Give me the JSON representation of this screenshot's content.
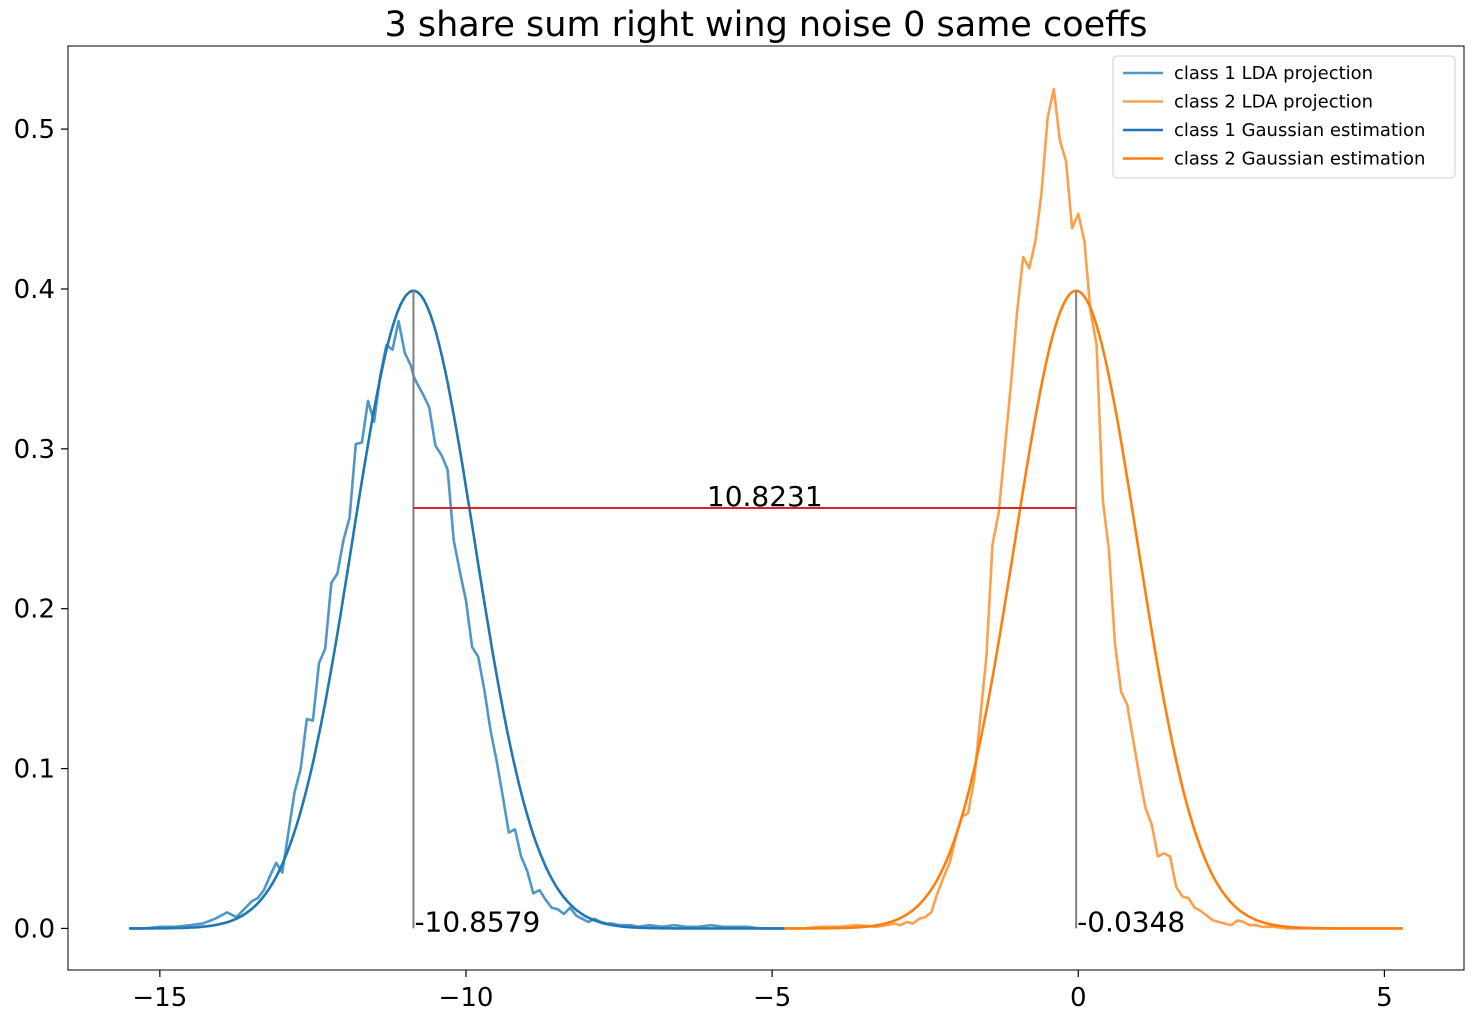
{
  "chart_data": {
    "type": "line",
    "title": "3 share sum right wing noise 0 same coeffs",
    "xlabel": "",
    "ylabel": "",
    "xlim": [
      -16.5,
      6.3
    ],
    "ylim": [
      -0.026,
      0.552
    ],
    "x_ticks": [
      {
        "value": -15,
        "label": "−15"
      },
      {
        "value": -10,
        "label": "−10"
      },
      {
        "value": -5,
        "label": "−5"
      },
      {
        "value": 0,
        "label": "0"
      },
      {
        "value": 5,
        "label": "5"
      }
    ],
    "y_ticks": [
      {
        "value": 0.0,
        "label": "0.0"
      },
      {
        "value": 0.1,
        "label": "0.1"
      },
      {
        "value": 0.2,
        "label": "0.2"
      },
      {
        "value": 0.3,
        "label": "0.3"
      },
      {
        "value": 0.4,
        "label": "0.4"
      },
      {
        "value": 0.5,
        "label": "0.5"
      }
    ],
    "grid": false,
    "legend_position": "top-right",
    "colors": {
      "class1_projection": "#5097c8",
      "class2_projection": "#fba04c",
      "class1_gaussian": "#1f77b4",
      "class2_gaussian": "#ff7f0e",
      "mean_line": "#808080",
      "distance_line": "#d62728"
    },
    "series": [
      {
        "name": "class 1 LDA projection",
        "kind": "projection",
        "x": [
          -15.5,
          -15.25,
          -15.0,
          -14.75,
          -14.5,
          -14.3,
          -14.1,
          -13.9,
          -13.75,
          -13.6,
          -13.5,
          -13.4,
          -13.3,
          -13.2,
          -13.1,
          -13.0,
          -12.9,
          -12.8,
          -12.7,
          -12.6,
          -12.5,
          -12.4,
          -12.3,
          -12.2,
          -12.1,
          -12.0,
          -11.9,
          -11.8,
          -11.7,
          -11.6,
          -11.5,
          -11.4,
          -11.3,
          -11.2,
          -11.1,
          -11.0,
          -10.9,
          -10.85,
          -10.8,
          -10.7,
          -10.6,
          -10.5,
          -10.4,
          -10.3,
          -10.2,
          -10.1,
          -10.0,
          -9.9,
          -9.8,
          -9.7,
          -9.6,
          -9.5,
          -9.4,
          -9.3,
          -9.2,
          -9.1,
          -9.0,
          -8.9,
          -8.8,
          -8.7,
          -8.6,
          -8.5,
          -8.4,
          -8.3,
          -8.2,
          -8.1,
          -8.0,
          -7.9,
          -7.8,
          -7.7,
          -7.6,
          -7.5,
          -7.4,
          -7.3,
          -7.2,
          -7.0,
          -6.8,
          -6.6,
          -6.4,
          -6.2,
          -6.0,
          -5.8,
          -5.6,
          -5.4,
          -5.2,
          -5.0,
          -4.8
        ],
        "y": [
          0.0,
          0.0,
          0.001,
          0.001,
          0.002,
          0.003,
          0.006,
          0.01,
          0.007,
          0.013,
          0.017,
          0.019,
          0.024,
          0.033,
          0.041,
          0.035,
          0.06,
          0.085,
          0.1,
          0.131,
          0.13,
          0.166,
          0.175,
          0.216,
          0.222,
          0.243,
          0.257,
          0.303,
          0.304,
          0.33,
          0.317,
          0.346,
          0.365,
          0.362,
          0.38,
          0.36,
          0.352,
          0.345,
          0.341,
          0.334,
          0.326,
          0.302,
          0.296,
          0.287,
          0.243,
          0.223,
          0.205,
          0.176,
          0.17,
          0.149,
          0.124,
          0.105,
          0.083,
          0.06,
          0.062,
          0.045,
          0.036,
          0.022,
          0.024,
          0.018,
          0.013,
          0.012,
          0.009,
          0.013,
          0.008,
          0.006,
          0.004,
          0.006,
          0.004,
          0.003,
          0.003,
          0.002,
          0.002,
          0.002,
          0.001,
          0.002,
          0.001,
          0.002,
          0.001,
          0.001,
          0.002,
          0.001,
          0.001,
          0.001,
          0.0,
          0.0,
          0.0
        ]
      },
      {
        "name": "class 2 LDA projection",
        "kind": "projection",
        "x": [
          -4.8,
          -4.5,
          -4.2,
          -3.9,
          -3.6,
          -3.3,
          -3.0,
          -2.9,
          -2.8,
          -2.7,
          -2.6,
          -2.5,
          -2.4,
          -2.3,
          -2.2,
          -2.1,
          -2.0,
          -1.9,
          -1.8,
          -1.7,
          -1.6,
          -1.5,
          -1.4,
          -1.3,
          -1.2,
          -1.1,
          -1.0,
          -0.9,
          -0.8,
          -0.7,
          -0.6,
          -0.5,
          -0.4,
          -0.3,
          -0.2,
          -0.1,
          0.0,
          0.1,
          0.2,
          0.3,
          0.4,
          0.5,
          0.6,
          0.7,
          0.8,
          0.9,
          1.0,
          1.1,
          1.2,
          1.3,
          1.4,
          1.5,
          1.6,
          1.7,
          1.8,
          1.9,
          2.0,
          2.1,
          2.2,
          2.3,
          2.4,
          2.5,
          2.6,
          2.7,
          2.8,
          2.9,
          3.0,
          3.1,
          3.2,
          3.4,
          3.6,
          3.8,
          4.0,
          4.3,
          4.6,
          4.9,
          5.3
        ],
        "y": [
          0.0,
          0.0,
          0.001,
          0.001,
          0.002,
          0.001,
          0.003,
          0.002,
          0.004,
          0.003,
          0.006,
          0.007,
          0.01,
          0.022,
          0.032,
          0.041,
          0.057,
          0.07,
          0.072,
          0.093,
          0.132,
          0.17,
          0.24,
          0.26,
          0.3,
          0.34,
          0.385,
          0.42,
          0.413,
          0.43,
          0.46,
          0.507,
          0.525,
          0.493,
          0.48,
          0.438,
          0.447,
          0.43,
          0.386,
          0.365,
          0.268,
          0.237,
          0.178,
          0.148,
          0.14,
          0.117,
          0.095,
          0.075,
          0.065,
          0.045,
          0.047,
          0.045,
          0.026,
          0.02,
          0.019,
          0.013,
          0.011,
          0.008,
          0.005,
          0.004,
          0.003,
          0.002,
          0.005,
          0.004,
          0.002,
          0.002,
          0.001,
          0.001,
          0.001,
          0.0,
          0.0,
          0.0,
          0.0,
          0.0,
          0.0,
          0.0,
          0.0
        ]
      },
      {
        "name": "class 1 Gaussian estimation",
        "kind": "gaussian",
        "mean": -10.8579,
        "sd": 1.0,
        "x_range": [
          -15.5,
          -4.8
        ]
      },
      {
        "name": "class 2 Gaussian estimation",
        "kind": "gaussian",
        "mean": -0.0348,
        "sd": 1.0,
        "x_range": [
          -4.8,
          5.3
        ]
      }
    ],
    "annotations": {
      "mean_lines": [
        {
          "x": -10.8579,
          "y_top": 0.399,
          "label": "-10.8579"
        },
        {
          "x": -0.0348,
          "y_top": 0.399,
          "label": "-0.0348"
        }
      ],
      "distance": {
        "x1": -10.8579,
        "x2": -0.0348,
        "y": 0.263,
        "label": "10.8231"
      }
    }
  }
}
